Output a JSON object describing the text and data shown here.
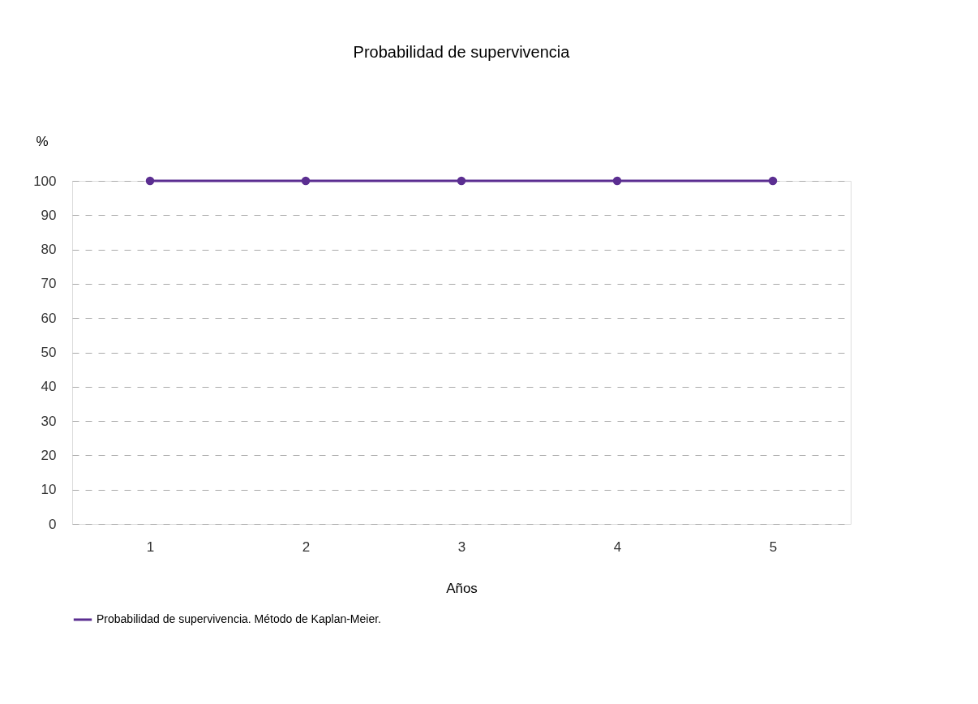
{
  "chart_data": {
    "type": "line",
    "title": "Probabilidad de supervivencia",
    "xlabel": "Años",
    "ylabel": "%",
    "categories": [
      "1",
      "2",
      "3",
      "4",
      "5"
    ],
    "series": [
      {
        "name": "Probabilidad de supervivencia. Método de Kaplan-Meier.",
        "color": "#5b2e91",
        "values": [
          100,
          100,
          100,
          100,
          100
        ]
      }
    ],
    "ylim": [
      0,
      100
    ],
    "yticks": [
      0,
      10,
      20,
      30,
      40,
      50,
      60,
      70,
      80,
      90,
      100
    ],
    "grid": "y",
    "legend": "bottom",
    "marker": "circle",
    "line_style": "solid"
  }
}
